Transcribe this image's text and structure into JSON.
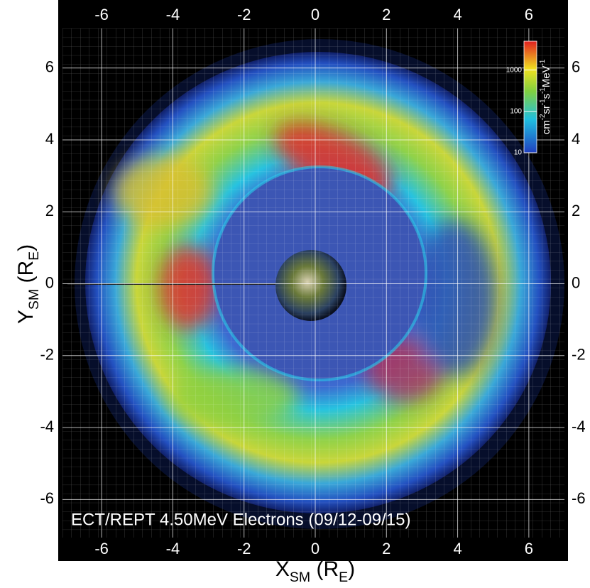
{
  "chart_data": {
    "type": "orbit-map",
    "annotation": "ECT/REPT 4.50MeV Electrons (09/12-09/15)",
    "xlabel": [
      "X",
      "SM",
      " (R",
      "E",
      ")"
    ],
    "ylabel": [
      "Y",
      "SM",
      " (R",
      "E",
      ")"
    ],
    "xlim": [
      -7.1,
      7.0
    ],
    "ylim": [
      -7.06,
      7.1
    ],
    "xticks": [
      -6,
      -4,
      -2,
      0,
      2,
      4,
      6
    ],
    "yticks": [
      -6,
      -4,
      -2,
      0,
      2,
      4,
      6
    ],
    "grid": true,
    "colorbar": {
      "label": [
        "cm",
        "-2",
        "sr",
        "-1",
        "s",
        "-1",
        "MeV",
        "-1"
      ],
      "lim": [
        10,
        5000
      ],
      "ticks": [
        10,
        100,
        1000
      ],
      "log": true
    }
  }
}
